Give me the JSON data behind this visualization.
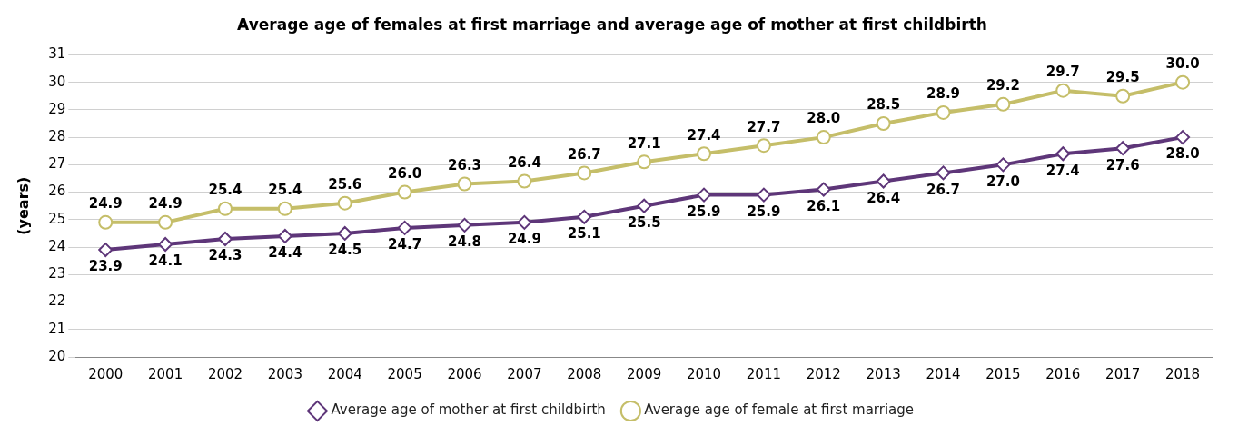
{
  "chart_data": {
    "type": "line",
    "title": "Average age of females at first marriage and average age of mother at first childbirth",
    "ylabel": "(years)",
    "categories": [
      "2000",
      "2001",
      "2002",
      "2003",
      "2004",
      "2005",
      "2006",
      "2007",
      "2008",
      "2009",
      "2010",
      "2011",
      "2012",
      "2013",
      "2014",
      "2015",
      "2016",
      "2017",
      "2018"
    ],
    "series": [
      {
        "name": "Average age of mother at first childbirth",
        "color": "#5e3679",
        "marker": "diamond",
        "values": [
          23.9,
          24.1,
          24.3,
          24.4,
          24.5,
          24.7,
          24.8,
          24.9,
          25.1,
          25.5,
          25.9,
          25.9,
          26.1,
          26.4,
          26.7,
          27.0,
          27.4,
          27.6,
          28.0
        ],
        "value_labels": [
          "23.9",
          "24.1",
          "24.3",
          "24.4",
          "24.5",
          "24.7",
          "24.8",
          "24.9",
          "25.1",
          "25.5",
          "25.9",
          "25.9",
          "26.1",
          "26.4",
          "26.7",
          "27.0",
          "27.4",
          "27.6",
          "28.0"
        ]
      },
      {
        "name": "Average age of female at first marriage",
        "color": "#c5be69",
        "marker": "circle",
        "values": [
          24.9,
          24.9,
          25.4,
          25.4,
          25.6,
          26.0,
          26.3,
          26.4,
          26.7,
          27.1,
          27.4,
          27.7,
          28.0,
          28.5,
          28.9,
          29.2,
          29.7,
          29.5,
          30.0
        ],
        "value_labels": [
          "24.9",
          "24.9",
          "25.4",
          "25.4",
          "25.6",
          "26.0",
          "26.3",
          "26.4",
          "26.7",
          "27.1",
          "27.4",
          "27.7",
          "28.0",
          "28.5",
          "28.9",
          "29.2",
          "29.7",
          "29.5",
          "30.0"
        ]
      }
    ],
    "ylim": [
      20,
      31
    ],
    "yticks": [
      20,
      21,
      22,
      23,
      24,
      25,
      26,
      27,
      28,
      29,
      30,
      31
    ],
    "grid": "y",
    "legend": "bottom",
    "line_style": "solid"
  }
}
